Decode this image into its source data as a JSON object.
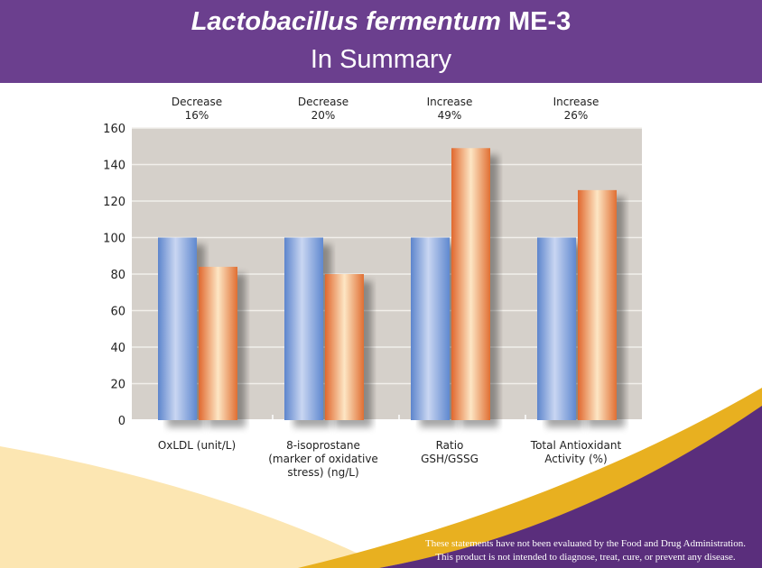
{
  "header": {
    "title_italic": "Lactobacillus fermentum",
    "title_bold": "ME-3",
    "subtitle": "In Summary"
  },
  "chart_data": {
    "type": "bar",
    "categories": [
      "OxLDL (unit/L)",
      "8-isoprostane (marker of oxidative stress) (ng/L)",
      "Ratio GSH/GSSG",
      "Total Antioxidant Activity (%)"
    ],
    "category_lines": [
      [
        "OxLDL (unit/L)"
      ],
      [
        "8-isoprostane",
        "(marker of oxidative",
        "stress) (ng/L)"
      ],
      [
        "Ratio",
        "GSH/GSSG"
      ],
      [
        "Total Antioxidant",
        "Activity (%)"
      ]
    ],
    "annotations": [
      [
        "Decrease",
        "16%"
      ],
      [
        "Decrease",
        "20%"
      ],
      [
        "Increase",
        "49%"
      ],
      [
        "Increase",
        "26%"
      ]
    ],
    "series": [
      {
        "values": [
          100,
          100,
          100,
          100
        ],
        "color": "#6f95d4"
      },
      {
        "values": [
          84,
          80,
          149,
          126
        ],
        "color": "#e2703a"
      }
    ],
    "ylim": [
      0,
      160
    ],
    "yticks": [
      0,
      20,
      40,
      60,
      80,
      100,
      120,
      140,
      160
    ],
    "grid": true,
    "plot_background": "#d5d0ca"
  },
  "footer": {
    "disclaimer_1": "These statements have not been evaluated by the Food and Drug Administration.",
    "disclaimer_2": "This product is not intended to diagnose, treat, cure, or prevent any disease."
  },
  "colors": {
    "purple": "#5a2e7c",
    "gold": "#e8b020",
    "light_gold": "#fbe3a8"
  }
}
